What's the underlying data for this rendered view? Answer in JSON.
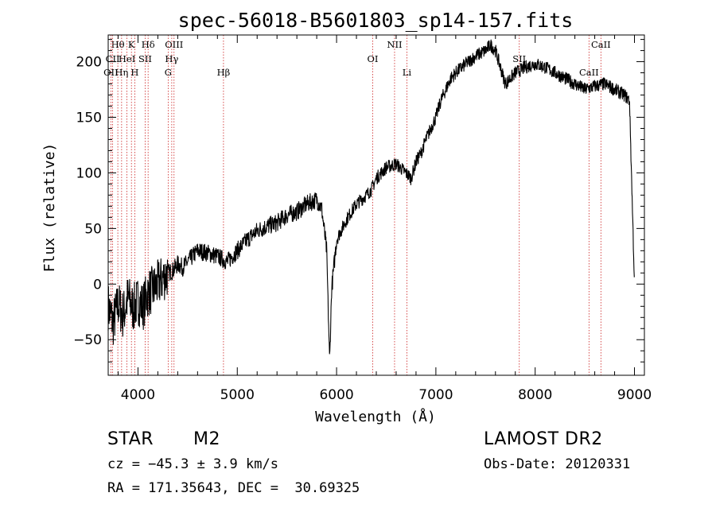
{
  "chart_data": {
    "type": "line",
    "title": "spec-56018-B5601803_sp14-157.fits",
    "xlabel": "Wavelength (Å)",
    "ylabel": "Flux (relative)",
    "xlim": [
      3700,
      9100
    ],
    "ylim": [
      -82,
      224
    ],
    "x_ticks": [
      4000,
      5000,
      6000,
      7000,
      8000,
      9000
    ],
    "x_tick_labels": [
      "4000",
      "5000",
      "6000",
      "7000",
      "8000",
      "9000"
    ],
    "y_ticks": [
      -50,
      0,
      50,
      100,
      150,
      200
    ],
    "y_tick_labels": [
      "−50",
      "0",
      "50",
      "100",
      "150",
      "200"
    ],
    "grid": false,
    "line_color": "#000000",
    "marker_color": "#cc2222",
    "series": [
      {
        "x": [
          3700,
          3750,
          3800,
          3850,
          3900,
          3950,
          4000,
          4050,
          4100,
          4150,
          4200,
          4250,
          4300,
          4350,
          4400,
          4450,
          4500,
          4600,
          4700,
          4800,
          4900,
          5000,
          5100,
          5200,
          5300,
          5400,
          5500,
          5600,
          5700,
          5800,
          5850,
          5900,
          5930,
          5950,
          6000,
          6100,
          6200,
          6300,
          6350,
          6400,
          6450,
          6500,
          6600,
          6700,
          6750,
          6800,
          6850,
          6900,
          7000,
          7050,
          7100,
          7150,
          7200,
          7300,
          7400,
          7500,
          7550,
          7600,
          7700,
          7800,
          7900,
          8000,
          8100,
          8200,
          8300,
          8400,
          8500,
          8600,
          8700,
          8800,
          8900,
          8950,
          9000
        ],
        "y": [
          -20,
          -35,
          -18,
          -28,
          -12,
          -22,
          -15,
          -20,
          -8,
          -5,
          0,
          5,
          10,
          12,
          18,
          15,
          20,
          30,
          28,
          25,
          20,
          30,
          40,
          48,
          52,
          55,
          62,
          65,
          72,
          76,
          68,
          30,
          -70,
          -5,
          40,
          58,
          72,
          80,
          85,
          95,
          100,
          105,
          108,
          100,
          95,
          110,
          118,
          130,
          150,
          165,
          175,
          185,
          190,
          198,
          205,
          210,
          215,
          210,
          180,
          190,
          195,
          198,
          195,
          190,
          185,
          180,
          175,
          178,
          180,
          175,
          170,
          165,
          0
        ]
      }
    ],
    "line_markers": [
      {
        "label": "Hθ",
        "x": 3797,
        "row": 0
      },
      {
        "label": "CII",
        "x": 3745,
        "row": 1
      },
      {
        "label": "OII",
        "x": 3727,
        "row": 2
      },
      {
        "label": "K",
        "x": 3934,
        "row": 0
      },
      {
        "label": "HeI",
        "x": 3889,
        "row": 1
      },
      {
        "label": "Hη",
        "x": 3835,
        "row": 2
      },
      {
        "label": "Hδ",
        "x": 4102,
        "row": 0
      },
      {
        "label": "SII",
        "x": 4072,
        "row": 1
      },
      {
        "label": "H",
        "x": 3968,
        "row": 2
      },
      {
        "label": "OIII",
        "x": 4363,
        "row": 0
      },
      {
        "label": "Hγ",
        "x": 4340,
        "row": 1
      },
      {
        "label": "G",
        "x": 4304,
        "row": 2
      },
      {
        "label": "Hβ",
        "x": 4861,
        "row": 2
      },
      {
        "label": "NII",
        "x": 6584,
        "row": 0
      },
      {
        "label": "OI",
        "x": 6364,
        "row": 1
      },
      {
        "label": "Li",
        "x": 6708,
        "row": 2
      },
      {
        "label": "CaII",
        "x": 8662,
        "row": 0
      },
      {
        "label": "SII",
        "x": 7840,
        "row": 1
      },
      {
        "label": "CaII",
        "x": 8542,
        "row": 2
      }
    ]
  },
  "info": {
    "object_class": "STAR",
    "subclass": "M2",
    "survey": "LAMOST DR2",
    "cz": "cz = −45.3 ± 3.9 km/s",
    "obs_date": "Obs-Date: 20120331",
    "coords": "RA = 171.35643, DEC =  30.69325"
  }
}
